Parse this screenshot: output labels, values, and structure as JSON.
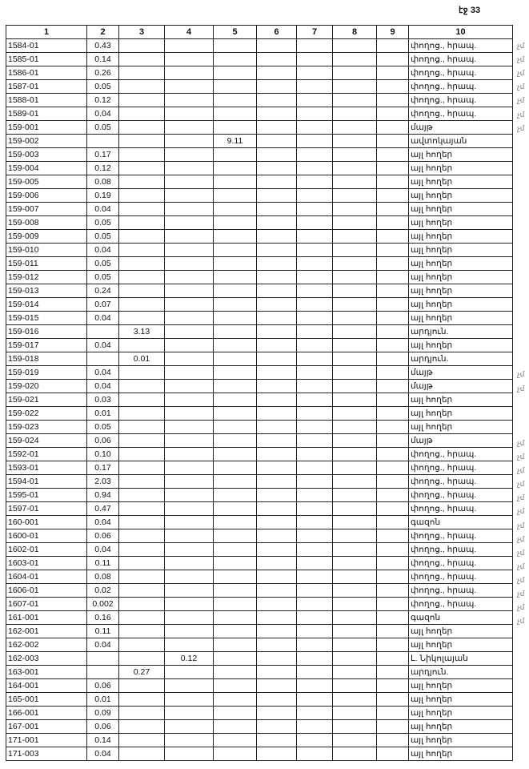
{
  "page_number": "էջ 33",
  "headers": [
    "1",
    "2",
    "3",
    "4",
    "5",
    "6",
    "7",
    "8",
    "9",
    "10"
  ],
  "rows": [
    {
      "c": [
        "1584-01",
        "0.43",
        "",
        "",
        "",
        "",
        "",
        "",
        "",
        "փողոց., հրապ."
      ],
      "mark": "չմ"
    },
    {
      "c": [
        "1585-01",
        "0.14",
        "",
        "",
        "",
        "",
        "",
        "",
        "",
        "փողոց., հրապ."
      ],
      "mark": "չմ"
    },
    {
      "c": [
        "1586-01",
        "0.26",
        "",
        "",
        "",
        "",
        "",
        "",
        "",
        "փողոց., հրապ."
      ],
      "mark": "չմ"
    },
    {
      "c": [
        "1587-01",
        "0.05",
        "",
        "",
        "",
        "",
        "",
        "",
        "",
        "փողոց., հրապ."
      ],
      "mark": "չմ"
    },
    {
      "c": [
        "1588-01",
        "0.12",
        "",
        "",
        "",
        "",
        "",
        "",
        "",
        "փողոց., հրապ."
      ],
      "mark": "չմ"
    },
    {
      "c": [
        "1589-01",
        "0.04",
        "",
        "",
        "",
        "",
        "",
        "",
        "",
        "փողոց., հրապ."
      ],
      "mark": "չմ"
    },
    {
      "c": [
        "159-001",
        "0.05",
        "",
        "",
        "",
        "",
        "",
        "",
        "",
        "մայթ"
      ],
      "mark": "չմ"
    },
    {
      "c": [
        "159-002",
        "",
        "",
        "",
        "9.11",
        "",
        "",
        "",
        "",
        "ավտոկայան"
      ]
    },
    {
      "c": [
        "159-003",
        "0.17",
        "",
        "",
        "",
        "",
        "",
        "",
        "",
        "այլ հողեր"
      ]
    },
    {
      "c": [
        "159-004",
        "0.12",
        "",
        "",
        "",
        "",
        "",
        "",
        "",
        "այլ հողեր"
      ]
    },
    {
      "c": [
        "159-005",
        "0.08",
        "",
        "",
        "",
        "",
        "",
        "",
        "",
        "այլ հողեր"
      ]
    },
    {
      "c": [
        "159-006",
        "0.19",
        "",
        "",
        "",
        "",
        "",
        "",
        "",
        "այլ հողեր"
      ]
    },
    {
      "c": [
        "159-007",
        "0.04",
        "",
        "",
        "",
        "",
        "",
        "",
        "",
        "այլ հողեր"
      ]
    },
    {
      "c": [
        "159-008",
        "0.05",
        "",
        "",
        "",
        "",
        "",
        "",
        "",
        "այլ հողեր"
      ]
    },
    {
      "c": [
        "159-009",
        "0.05",
        "",
        "",
        "",
        "",
        "",
        "",
        "",
        "այլ հողեր"
      ]
    },
    {
      "c": [
        "159-010",
        "0.04",
        "",
        "",
        "",
        "",
        "",
        "",
        "",
        "այլ հողեր"
      ]
    },
    {
      "c": [
        "159-011",
        "0.05",
        "",
        "",
        "",
        "",
        "",
        "",
        "",
        "այլ հողեր"
      ]
    },
    {
      "c": [
        "159-012",
        "0.05",
        "",
        "",
        "",
        "",
        "",
        "",
        "",
        "այլ հողեր"
      ]
    },
    {
      "c": [
        "159-013",
        "0.24",
        "",
        "",
        "",
        "",
        "",
        "",
        "",
        "այլ հողեր"
      ]
    },
    {
      "c": [
        "159-014",
        "0.07",
        "",
        "",
        "",
        "",
        "",
        "",
        "",
        "այլ հողեր"
      ]
    },
    {
      "c": [
        "159-015",
        "0.04",
        "",
        "",
        "",
        "",
        "",
        "",
        "",
        "այլ հողեր"
      ]
    },
    {
      "c": [
        "159-016",
        "",
        "3.13",
        "",
        "",
        "",
        "",
        "",
        "",
        "արդյուն."
      ]
    },
    {
      "c": [
        "159-017",
        "0.04",
        "",
        "",
        "",
        "",
        "",
        "",
        "",
        "այլ հողեր"
      ]
    },
    {
      "c": [
        "159-018",
        "",
        "0.01",
        "",
        "",
        "",
        "",
        "",
        "",
        "արդյուն."
      ]
    },
    {
      "c": [
        "159-019",
        "0.04",
        "",
        "",
        "",
        "",
        "",
        "",
        "",
        "մայթ"
      ],
      "mark": "չմ"
    },
    {
      "c": [
        "159-020",
        "0.04",
        "",
        "",
        "",
        "",
        "",
        "",
        "",
        "մայթ"
      ],
      "mark": "չմ"
    },
    {
      "c": [
        "159-021",
        "0.03",
        "",
        "",
        "",
        "",
        "",
        "",
        "",
        "այլ հողեր"
      ]
    },
    {
      "c": [
        "159-022",
        "0.01",
        "",
        "",
        "",
        "",
        "",
        "",
        "",
        "այլ հողեր"
      ]
    },
    {
      "c": [
        "159-023",
        "0.05",
        "",
        "",
        "",
        "",
        "",
        "",
        "",
        "այլ հողեր"
      ]
    },
    {
      "c": [
        "159-024",
        "0.06",
        "",
        "",
        "",
        "",
        "",
        "",
        "",
        "մայթ"
      ],
      "mark": "չմ"
    },
    {
      "c": [
        "1592-01",
        "0.10",
        "",
        "",
        "",
        "",
        "",
        "",
        "",
        "փողոց., հրապ."
      ],
      "mark": "չմ"
    },
    {
      "c": [
        "1593-01",
        "0.17",
        "",
        "",
        "",
        "",
        "",
        "",
        "",
        "փողոց., հրապ."
      ],
      "mark": "չմ"
    },
    {
      "c": [
        "1594-01",
        "2.03",
        "",
        "",
        "",
        "",
        "",
        "",
        "",
        "փողոց., հրապ."
      ],
      "mark": "չմ"
    },
    {
      "c": [
        "1595-01",
        "0.94",
        "",
        "",
        "",
        "",
        "",
        "",
        "",
        "փողոց., հրապ."
      ],
      "mark": "չմ"
    },
    {
      "c": [
        "1597-01",
        "0.47",
        "",
        "",
        "",
        "",
        "",
        "",
        "",
        "փողոց., հրապ."
      ],
      "mark": "չմ"
    },
    {
      "c": [
        "160-001",
        "0.04",
        "",
        "",
        "",
        "",
        "",
        "",
        "",
        "գազոն"
      ],
      "mark": "չմ"
    },
    {
      "c": [
        "1600-01",
        "0.06",
        "",
        "",
        "",
        "",
        "",
        "",
        "",
        "փողոց., հրապ."
      ],
      "mark": "չմ"
    },
    {
      "c": [
        "1602-01",
        "0.04",
        "",
        "",
        "",
        "",
        "",
        "",
        "",
        "փողոց., հրապ."
      ],
      "mark": "չմ"
    },
    {
      "c": [
        "1603-01",
        "0.11",
        "",
        "",
        "",
        "",
        "",
        "",
        "",
        "փողոց., հրապ."
      ],
      "mark": "չմ"
    },
    {
      "c": [
        "1604-01",
        "0.08",
        "",
        "",
        "",
        "",
        "",
        "",
        "",
        "փողոց., հրապ."
      ],
      "mark": "չմ"
    },
    {
      "c": [
        "1606-01",
        "0.02",
        "",
        "",
        "",
        "",
        "",
        "",
        "",
        "փողոց., հրապ."
      ],
      "mark": "չմ"
    },
    {
      "c": [
        "1607-01",
        "0.002",
        "",
        "",
        "",
        "",
        "",
        "",
        "",
        "փողոց., հրապ."
      ],
      "mark": "չմ"
    },
    {
      "c": [
        "161-001",
        "0.16",
        "",
        "",
        "",
        "",
        "",
        "",
        "",
        "գազոն"
      ],
      "mark": "չմ"
    },
    {
      "c": [
        "162-001",
        "0.11",
        "",
        "",
        "",
        "",
        "",
        "",
        "",
        "այլ հողեր"
      ]
    },
    {
      "c": [
        "162-002",
        "0.04",
        "",
        "",
        "",
        "",
        "",
        "",
        "",
        "այլ հողեր"
      ]
    },
    {
      "c": [
        "162-003",
        "",
        "",
        "0.12",
        "",
        "",
        "",
        "",
        "",
        "Լ. Նիկոլայան"
      ]
    },
    {
      "c": [
        "163-001",
        "",
        "0.27",
        "",
        "",
        "",
        "",
        "",
        "",
        "արդյուն."
      ]
    },
    {
      "c": [
        "164-001",
        "0.06",
        "",
        "",
        "",
        "",
        "",
        "",
        "",
        "այլ հողեր"
      ]
    },
    {
      "c": [
        "165-001",
        "0.01",
        "",
        "",
        "",
        "",
        "",
        "",
        "",
        "այլ հողեր"
      ]
    },
    {
      "c": [
        "166-001",
        "0.09",
        "",
        "",
        "",
        "",
        "",
        "",
        "",
        "այլ հողեր"
      ]
    },
    {
      "c": [
        "167-001",
        "0.06",
        "",
        "",
        "",
        "",
        "",
        "",
        "",
        "այլ հողեր"
      ]
    },
    {
      "c": [
        "171-001",
        "0.14",
        "",
        "",
        "",
        "",
        "",
        "",
        "",
        "այլ հողեր"
      ]
    },
    {
      "c": [
        "171-003",
        "0.04",
        "",
        "",
        "",
        "",
        "",
        "",
        "",
        "այլ հողեր"
      ]
    }
  ]
}
